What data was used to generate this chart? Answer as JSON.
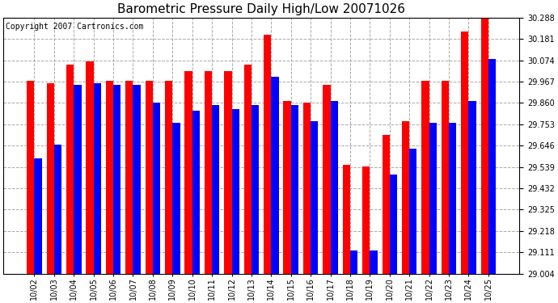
{
  "title": "Barometric Pressure Daily High/Low 20071026",
  "copyright": "Copyright 2007 Cartronics.com",
  "dates": [
    "10/02",
    "10/03",
    "10/04",
    "10/05",
    "10/06",
    "10/07",
    "10/08",
    "10/09",
    "10/10",
    "10/11",
    "10/12",
    "10/13",
    "10/14",
    "10/15",
    "10/16",
    "10/17",
    "10/18",
    "10/19",
    "10/20",
    "10/21",
    "10/22",
    "10/23",
    "10/24",
    "10/25"
  ],
  "highs": [
    29.97,
    29.96,
    30.05,
    30.07,
    29.97,
    29.97,
    29.97,
    29.97,
    30.02,
    30.02,
    30.02,
    30.05,
    30.2,
    29.87,
    29.86,
    29.95,
    29.55,
    29.54,
    29.7,
    29.77,
    29.97,
    29.97,
    30.22,
    30.29
  ],
  "lows": [
    29.58,
    29.65,
    29.95,
    29.96,
    29.95,
    29.95,
    29.86,
    29.76,
    29.82,
    29.85,
    29.83,
    29.85,
    29.99,
    29.85,
    29.77,
    29.87,
    29.12,
    29.12,
    29.5,
    29.63,
    29.76,
    29.76,
    29.87,
    30.08
  ],
  "high_color": "#FF0000",
  "low_color": "#0000FF",
  "bg_color": "#FFFFFF",
  "ymin": 29.004,
  "ymax": 30.288,
  "yticks": [
    29.004,
    29.111,
    29.218,
    29.325,
    29.432,
    29.539,
    29.646,
    29.753,
    29.86,
    29.967,
    30.074,
    30.181,
    30.288
  ],
  "title_fontsize": 11,
  "copyright_fontsize": 7
}
